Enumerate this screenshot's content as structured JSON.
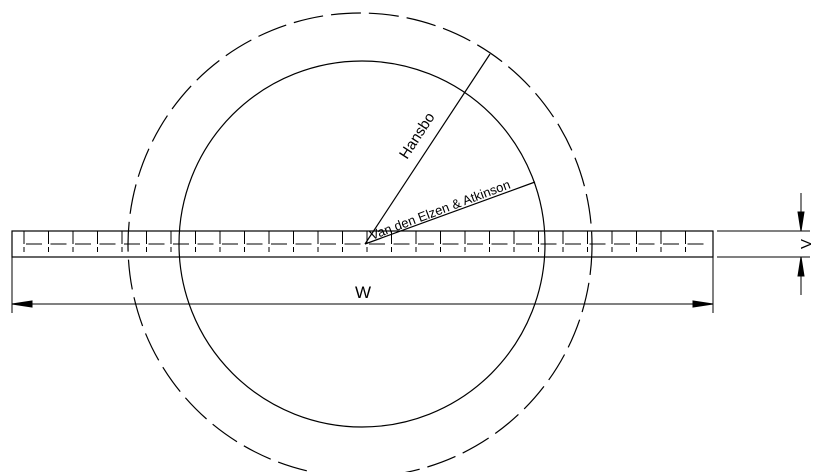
{
  "labels": {
    "hansbo": "Hansbo",
    "van_den_elzen": "Van den Elzen & Atkinson",
    "width": "W",
    "thickness": "V"
  },
  "colors": {
    "line": "#000000",
    "background": "#ffffff"
  }
}
